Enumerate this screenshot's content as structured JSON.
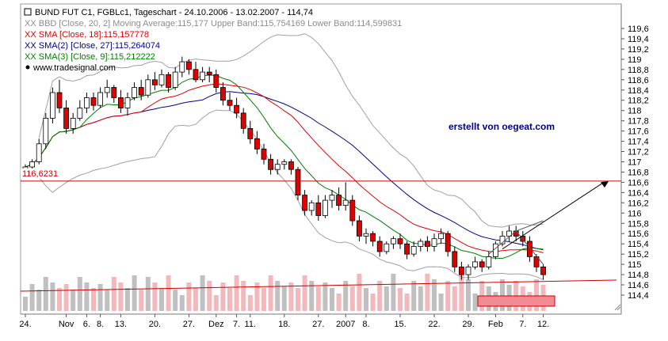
{
  "chart_data": {
    "type": "candlestick",
    "header": {
      "title": "BUND FUT C1, FGBLc1, Tageschart - 24.10.2006 - 13.02.2007 - 114,74",
      "bbd": "XX BBD [Close, 20, 2] Moving Average:115,177 Upper Band:115,754169 Lower Band:114,599831",
      "sma18": "XX SMA [Close, 18]:115,157778",
      "sma27": "XX SMA(2) [Close, 27]:115,264074",
      "sma9": "XX SMA(3) [Close, 9]:115,212222",
      "source": "www.tradesignal.com"
    },
    "annotation": "erstellt von oegeat.com",
    "hline_label": "116,6231",
    "hline_value": 116.6231,
    "ylim": [
      114.1,
      119.8
    ],
    "y_ticks": [
      "119,6",
      "119,4",
      "119,2",
      "119",
      "118,8",
      "118,6",
      "118,4",
      "118,2",
      "118",
      "117,8",
      "117,6",
      "117,4",
      "117,2",
      "117",
      "116,8",
      "116,6",
      "116,4",
      "116,2",
      "116",
      "115,8",
      "115,6",
      "115,4",
      "115,2",
      "115",
      "114,8",
      "114,6",
      "114,4"
    ],
    "x_labels": [
      {
        "label": "24.",
        "i": 0
      },
      {
        "label": "Nov",
        "i": 6
      },
      {
        "label": "6.",
        "i": 9
      },
      {
        "label": "8.",
        "i": 11
      },
      {
        "label": "13.",
        "i": 14
      },
      {
        "label": "20.",
        "i": 19
      },
      {
        "label": "27.",
        "i": 24
      },
      {
        "label": "Dez",
        "i": 28
      },
      {
        "label": "7.",
        "i": 31
      },
      {
        "label": "11.",
        "i": 33
      },
      {
        "label": "18.",
        "i": 38
      },
      {
        "label": "27.",
        "i": 43
      },
      {
        "label": "2007",
        "i": 47
      },
      {
        "label": "8.",
        "i": 50
      },
      {
        "label": "15.",
        "i": 55
      },
      {
        "label": "22.",
        "i": 60
      },
      {
        "label": "29.",
        "i": 65
      },
      {
        "label": "Feb",
        "i": 69
      },
      {
        "label": "7.",
        "i": 73
      },
      {
        "label": "12.",
        "i": 76
      }
    ],
    "ohlc": [
      [
        116.85,
        116.95,
        116.75,
        116.9
      ],
      [
        116.9,
        117.05,
        116.85,
        117.0
      ],
      [
        117.0,
        117.45,
        116.95,
        117.35
      ],
      [
        117.35,
        117.95,
        117.25,
        117.85
      ],
      [
        117.85,
        118.45,
        117.75,
        118.35
      ],
      [
        118.35,
        118.6,
        117.95,
        118.05
      ],
      [
        118.05,
        118.2,
        117.55,
        117.65
      ],
      [
        117.65,
        117.95,
        117.55,
        117.85
      ],
      [
        117.85,
        118.2,
        117.8,
        118.05
      ],
      [
        118.05,
        118.35,
        117.95,
        118.25
      ],
      [
        118.25,
        118.35,
        118.0,
        118.1
      ],
      [
        118.1,
        118.45,
        118.05,
        118.35
      ],
      [
        118.35,
        118.6,
        118.25,
        118.45
      ],
      [
        118.45,
        118.5,
        118.15,
        118.25
      ],
      [
        118.25,
        118.4,
        117.95,
        118.05
      ],
      [
        118.05,
        118.35,
        117.9,
        118.25
      ],
      [
        118.25,
        118.55,
        118.2,
        118.45
      ],
      [
        118.45,
        118.6,
        118.2,
        118.3
      ],
      [
        118.3,
        118.7,
        118.25,
        118.6
      ],
      [
        118.6,
        118.75,
        118.4,
        118.5
      ],
      [
        118.5,
        118.8,
        118.45,
        118.7
      ],
      [
        118.7,
        118.75,
        118.35,
        118.45
      ],
      [
        118.45,
        118.85,
        118.4,
        118.75
      ],
      [
        118.75,
        119.05,
        118.65,
        118.95
      ],
      [
        118.95,
        119.0,
        118.7,
        118.8
      ],
      [
        118.8,
        118.95,
        118.55,
        118.6
      ],
      [
        118.6,
        118.85,
        118.55,
        118.75
      ],
      [
        118.75,
        118.85,
        118.55,
        118.7
      ],
      [
        118.7,
        118.8,
        118.35,
        118.45
      ],
      [
        118.45,
        118.55,
        118.1,
        118.2
      ],
      [
        118.2,
        118.35,
        118.0,
        118.1
      ],
      [
        118.1,
        118.25,
        117.85,
        117.95
      ],
      [
        117.95,
        118.05,
        117.55,
        117.65
      ],
      [
        117.65,
        117.8,
        117.35,
        117.45
      ],
      [
        117.45,
        117.6,
        117.15,
        117.25
      ],
      [
        117.25,
        117.35,
        116.95,
        117.05
      ],
      [
        117.05,
        117.15,
        116.75,
        116.85
      ],
      [
        116.85,
        117.05,
        116.75,
        116.95
      ],
      [
        116.95,
        117.05,
        116.85,
        117.0
      ],
      [
        117.0,
        117.05,
        116.75,
        116.85
      ],
      [
        116.85,
        116.9,
        116.25,
        116.35
      ],
      [
        116.35,
        116.45,
        115.95,
        116.05
      ],
      [
        116.05,
        116.25,
        115.95,
        116.2
      ],
      [
        116.2,
        116.35,
        115.85,
        115.95
      ],
      [
        115.95,
        116.35,
        115.9,
        116.25
      ],
      [
        116.25,
        116.45,
        116.1,
        116.35
      ],
      [
        116.35,
        116.5,
        116.05,
        116.15
      ],
      [
        116.15,
        116.6,
        116.05,
        116.25
      ],
      [
        116.25,
        116.35,
        115.75,
        115.85
      ],
      [
        115.85,
        115.95,
        115.45,
        115.55
      ],
      [
        115.55,
        115.7,
        115.4,
        115.6
      ],
      [
        115.6,
        115.65,
        115.35,
        115.45
      ],
      [
        115.45,
        115.55,
        115.15,
        115.25
      ],
      [
        115.25,
        115.45,
        115.2,
        115.4
      ],
      [
        115.4,
        115.55,
        115.3,
        115.5
      ],
      [
        115.5,
        115.6,
        115.3,
        115.4
      ],
      [
        115.4,
        115.45,
        115.1,
        115.2
      ],
      [
        115.2,
        115.45,
        115.15,
        115.35
      ],
      [
        115.35,
        115.5,
        115.25,
        115.45
      ],
      [
        115.45,
        115.55,
        115.25,
        115.35
      ],
      [
        115.35,
        115.6,
        115.25,
        115.5
      ],
      [
        115.5,
        115.7,
        115.4,
        115.6
      ],
      [
        115.6,
        115.65,
        115.15,
        115.25
      ],
      [
        115.25,
        115.35,
        114.85,
        114.95
      ],
      [
        114.95,
        115.05,
        114.7,
        114.8
      ],
      [
        114.8,
        115.0,
        114.7,
        114.95
      ],
      [
        114.95,
        115.15,
        114.9,
        115.05
      ],
      [
        115.05,
        115.1,
        114.85,
        114.95
      ],
      [
        114.95,
        115.25,
        114.9,
        115.15
      ],
      [
        115.15,
        115.45,
        115.1,
        115.4
      ],
      [
        115.4,
        115.65,
        115.35,
        115.55
      ],
      [
        115.55,
        115.75,
        115.45,
        115.65
      ],
      [
        115.65,
        115.75,
        115.45,
        115.55
      ],
      [
        115.55,
        115.65,
        115.35,
        115.45
      ],
      [
        115.45,
        115.55,
        115.05,
        115.15
      ],
      [
        115.15,
        115.2,
        114.85,
        114.95
      ],
      [
        114.95,
        115.0,
        114.7,
        114.8
      ]
    ]
  }
}
